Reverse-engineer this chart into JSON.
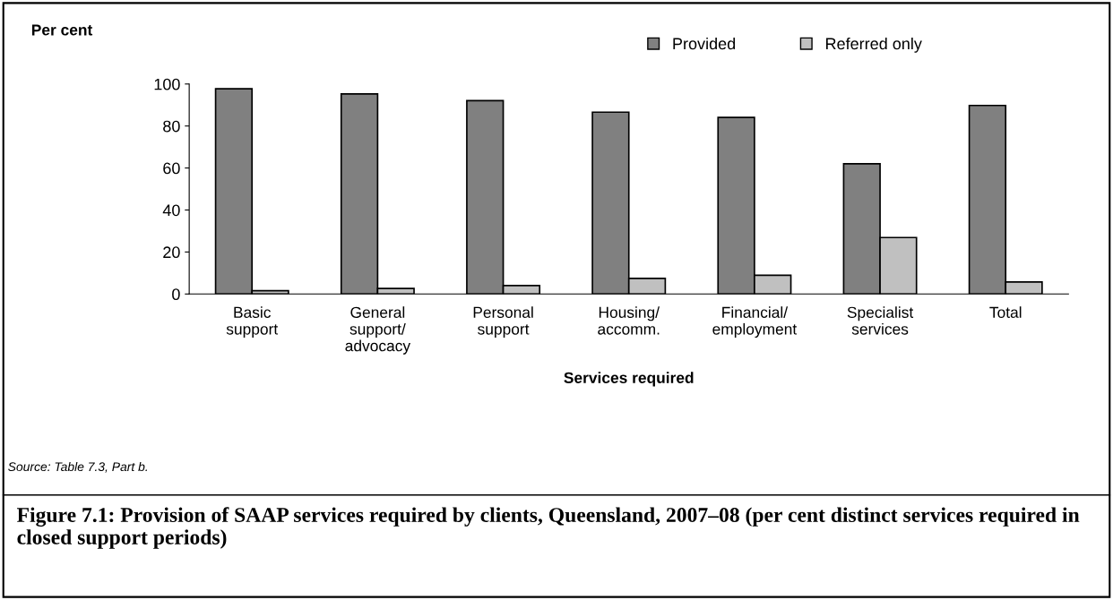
{
  "chart_data": {
    "type": "bar",
    "ylabel": "Per cent",
    "xlabel": "Services required",
    "title": "Figure 7.1: Provision of SAAP services required by clients, Queensland, 2007–08 (per cent distinct services required in closed support periods)",
    "annotations": [
      "Source: Table 7.3, Part b."
    ],
    "categories": [
      "Basic\nsupport",
      "General\nsupport/\nadvocacy",
      "Personal\nsupport",
      "Housing/\naccomm.",
      "Financial/\nemployment",
      "Specialist\nservices",
      "Total"
    ],
    "series": [
      {
        "name": "Provided",
        "color": "#808080",
        "values": [
          97.7,
          95.3,
          92.1,
          86.6,
          84.1,
          62.0,
          89.8
        ]
      },
      {
        "name": "Referred only",
        "color": "#c0c0c0",
        "values": [
          1.6,
          2.6,
          4.0,
          7.4,
          8.9,
          26.9,
          5.7
        ]
      }
    ],
    "ylim": [
      0,
      100
    ],
    "yticks": [
      0,
      20,
      40,
      60,
      80,
      100
    ],
    "grid": false,
    "legend": "top right"
  }
}
